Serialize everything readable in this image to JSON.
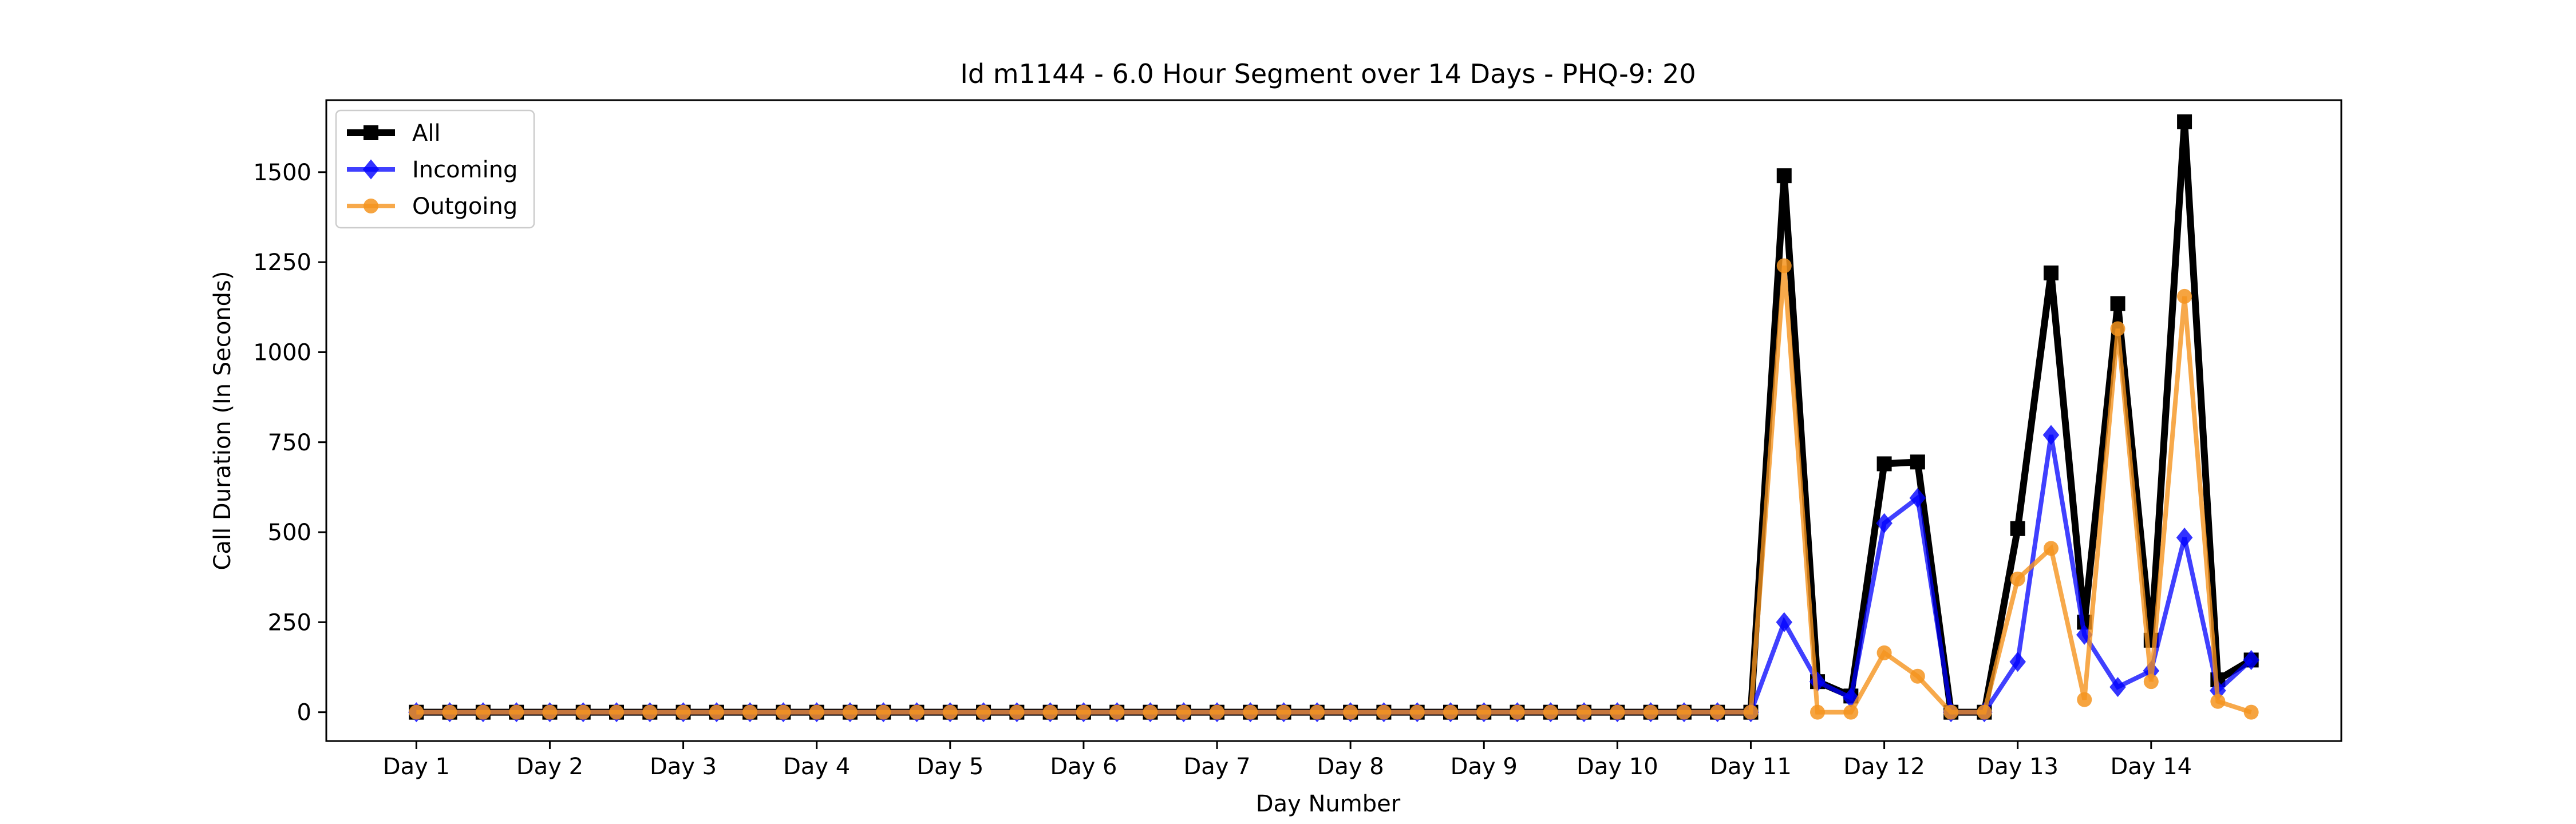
{
  "chart_data": {
    "type": "line",
    "title": "Id m1144 - 6.0 Hour Segment over 14 Days - PHQ-9: 20",
    "xlabel": "Day Number",
    "ylabel": "Call Duration (In Seconds)",
    "ylim": [
      -80,
      1700
    ],
    "yticks": [
      0,
      250,
      500,
      750,
      1000,
      1250,
      1500
    ],
    "xticks": [
      {
        "pos": 0,
        "label": "Day 1"
      },
      {
        "pos": 4,
        "label": "Day 2"
      },
      {
        "pos": 8,
        "label": "Day 3"
      },
      {
        "pos": 12,
        "label": "Day 4"
      },
      {
        "pos": 16,
        "label": "Day 5"
      },
      {
        "pos": 20,
        "label": "Day 6"
      },
      {
        "pos": 24,
        "label": "Day 7"
      },
      {
        "pos": 28,
        "label": "Day 8"
      },
      {
        "pos": 32,
        "label": "Day 9"
      },
      {
        "pos": 36,
        "label": "Day 10"
      },
      {
        "pos": 40,
        "label": "Day 11"
      },
      {
        "pos": 44,
        "label": "Day 12"
      },
      {
        "pos": 48,
        "label": "Day 13"
      },
      {
        "pos": 52,
        "label": "Day 14"
      }
    ],
    "xlim": [
      -2.7,
      57.7
    ],
    "grid": false,
    "legend_position": "top-left",
    "series": [
      {
        "name": "All",
        "color": "#000000",
        "marker": "square",
        "values": [
          0,
          0,
          0,
          0,
          0,
          0,
          0,
          0,
          0,
          0,
          0,
          0,
          0,
          0,
          0,
          0,
          0,
          0,
          0,
          0,
          0,
          0,
          0,
          0,
          0,
          0,
          0,
          0,
          0,
          0,
          0,
          0,
          0,
          0,
          0,
          0,
          0,
          0,
          0,
          0,
          0,
          1490,
          85,
          45,
          690,
          695,
          0,
          0,
          510,
          1220,
          250,
          1135,
          200,
          1640,
          90,
          145
        ]
      },
      {
        "name": "Incoming",
        "color": "#0000ff",
        "marker": "diamond",
        "values": [
          0,
          0,
          0,
          0,
          0,
          0,
          0,
          0,
          0,
          0,
          0,
          0,
          0,
          0,
          0,
          0,
          0,
          0,
          0,
          0,
          0,
          0,
          0,
          0,
          0,
          0,
          0,
          0,
          0,
          0,
          0,
          0,
          0,
          0,
          0,
          0,
          0,
          0,
          0,
          0,
          0,
          250,
          85,
          40,
          525,
          595,
          0,
          0,
          140,
          770,
          215,
          70,
          115,
          485,
          60,
          145
        ]
      },
      {
        "name": "Outgoing",
        "color": "#f5941e",
        "marker": "circle",
        "values": [
          0,
          0,
          0,
          0,
          0,
          0,
          0,
          0,
          0,
          0,
          0,
          0,
          0,
          0,
          0,
          0,
          0,
          0,
          0,
          0,
          0,
          0,
          0,
          0,
          0,
          0,
          0,
          0,
          0,
          0,
          0,
          0,
          0,
          0,
          0,
          0,
          0,
          0,
          0,
          0,
          0,
          1240,
          0,
          0,
          165,
          100,
          0,
          0,
          370,
          455,
          35,
          1065,
          85,
          1155,
          30,
          0
        ]
      }
    ]
  }
}
